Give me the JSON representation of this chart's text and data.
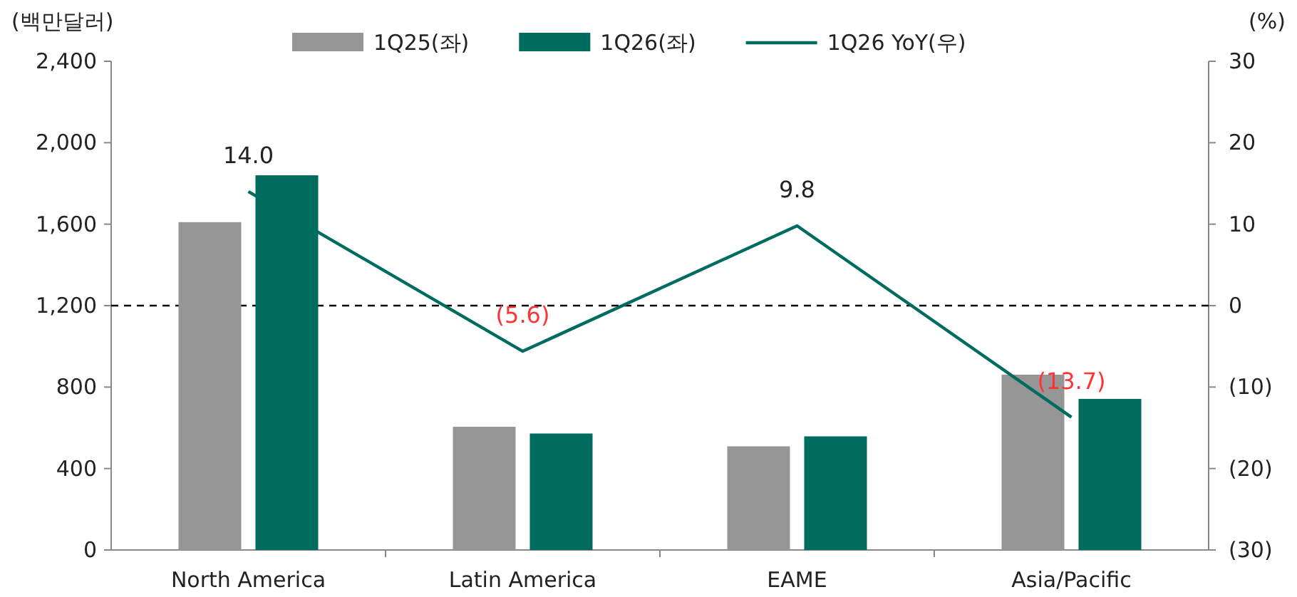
{
  "chart_data": {
    "type": "bar",
    "categories": [
      "North America",
      "Latin America",
      "EAME",
      "Asia/Pacific"
    ],
    "ylabel": "(백만달러)",
    "y2label": "(%)",
    "series": [
      {
        "name": "1Q25(좌)",
        "color": "#969696",
        "values": [
          1610,
          605,
          509,
          861
        ]
      },
      {
        "name": "1Q26(좌)",
        "color": "#006b5f",
        "values": [
          1840,
          572,
          558,
          742
        ]
      },
      {
        "name": "1Q26 YoY(우)",
        "type": "line",
        "axis": "y2",
        "color": "#006b5f",
        "values": [
          14.0,
          -5.6,
          9.8,
          -13.7
        ],
        "value_labels": [
          "14.0",
          "(5.6)",
          "9.8",
          "(13.7)"
        ]
      }
    ],
    "ylim": [
      0,
      2400
    ],
    "yticks": [
      0,
      400,
      800,
      {
        "value": 1200,
        "label": "1,200"
      },
      {
        "value": 1600,
        "label": "1,600"
      },
      {
        "value": 2000,
        "label": "2,000"
      },
      {
        "value": 2400,
        "label": "2,400"
      }
    ],
    "y2lim": [
      -30,
      30
    ],
    "y2ticks": [
      {
        "value": -30,
        "label": "(30)"
      },
      {
        "value": -20,
        "label": "(20)"
      },
      {
        "value": -10,
        "label": "(10)"
      },
      0,
      10,
      20,
      30
    ],
    "ref_lines": [
      {
        "axis": "y2",
        "value": 0,
        "color": "#000000",
        "line_style": "dashed"
      }
    ],
    "legend": "top"
  }
}
